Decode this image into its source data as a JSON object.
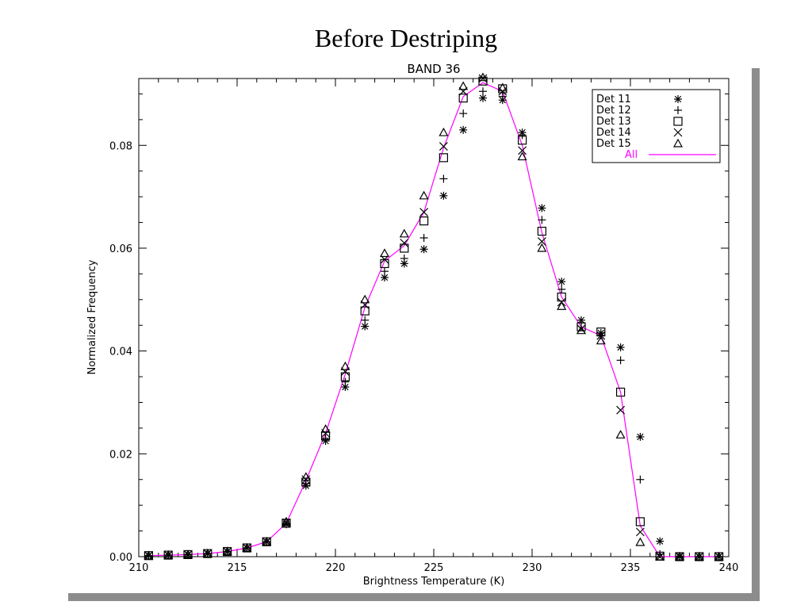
{
  "slide": {
    "title": "Before Destriping"
  },
  "chart_data": {
    "type": "scatter",
    "title": "BAND 36",
    "xlabel": "Brightness Temperature (K)",
    "ylabel": "Normalized Frequency",
    "xlim": [
      210,
      240
    ],
    "ylim": [
      0,
      0.093
    ],
    "xticks": [
      210,
      215,
      220,
      225,
      230,
      235,
      240
    ],
    "xtick_labels": [
      "210",
      "215",
      "220",
      "225",
      "230",
      "235",
      "240"
    ],
    "yticks": [
      0,
      0.02,
      0.04,
      0.06,
      0.08
    ],
    "ytick_labels": [
      "0.00",
      "0.02",
      "0.04",
      "0.06",
      "0.08"
    ],
    "x": [
      210.5,
      211.5,
      212.5,
      213.5,
      214.5,
      215.5,
      216.5,
      217.5,
      218.5,
      219.5,
      220.5,
      221.5,
      222.5,
      223.5,
      224.5,
      225.5,
      226.5,
      227.5,
      228.5,
      229.5,
      230.5,
      231.5,
      232.5,
      233.5,
      234.5,
      235.5,
      236.5,
      237.5,
      238.5,
      239.5
    ],
    "series": [
      {
        "name": "Det 11",
        "marker": "asterisk",
        "color": "#000000",
        "values": [
          0.0002,
          0.0003,
          0.0004,
          0.0006,
          0.001,
          0.0017,
          0.0029,
          0.0063,
          0.0138,
          0.0225,
          0.033,
          0.0448,
          0.0543,
          0.057,
          0.0598,
          0.0702,
          0.083,
          0.0892,
          0.0888,
          0.0825,
          0.0678,
          0.0535,
          0.046,
          0.0435,
          0.0407,
          0.0233,
          0.003,
          0.0001,
          0.0,
          0.0
        ]
      },
      {
        "name": "Det 12",
        "marker": "plus",
        "color": "#000000",
        "values": [
          0.0002,
          0.0003,
          0.0004,
          0.0006,
          0.001,
          0.0017,
          0.0029,
          0.0064,
          0.0142,
          0.023,
          0.034,
          0.046,
          0.0555,
          0.058,
          0.062,
          0.0735,
          0.0862,
          0.0905,
          0.0895,
          0.082,
          0.0655,
          0.052,
          0.0455,
          0.043,
          0.0382,
          0.015,
          0.0005,
          0.0,
          0.0,
          0.0
        ]
      },
      {
        "name": "Det 13",
        "marker": "square",
        "color": "#000000",
        "values": [
          0.0002,
          0.0003,
          0.0004,
          0.0006,
          0.001,
          0.0017,
          0.0029,
          0.0065,
          0.0145,
          0.0235,
          0.035,
          0.0478,
          0.057,
          0.06,
          0.0653,
          0.0776,
          0.0892,
          0.0925,
          0.091,
          0.081,
          0.0633,
          0.0505,
          0.0447,
          0.0437,
          0.032,
          0.0068,
          0.0001,
          0.0,
          0.0,
          0.0
        ]
      },
      {
        "name": "Det 14",
        "marker": "x",
        "color": "#000000",
        "values": [
          0.0002,
          0.0003,
          0.0004,
          0.0006,
          0.001,
          0.0017,
          0.0029,
          0.0066,
          0.015,
          0.024,
          0.036,
          0.049,
          0.0578,
          0.061,
          0.067,
          0.0798,
          0.0905,
          0.093,
          0.0905,
          0.079,
          0.0613,
          0.0495,
          0.0443,
          0.043,
          0.0285,
          0.0048,
          0.0,
          0.0,
          0.0,
          0.0
        ]
      },
      {
        "name": "Det 15",
        "marker": "triangle",
        "color": "#000000",
        "values": [
          0.0002,
          0.0003,
          0.0004,
          0.0006,
          0.001,
          0.0017,
          0.0029,
          0.0068,
          0.0155,
          0.0248,
          0.037,
          0.05,
          0.059,
          0.0628,
          0.0702,
          0.0825,
          0.0915,
          0.0932,
          0.0912,
          0.0778,
          0.06,
          0.0487,
          0.044,
          0.042,
          0.0237,
          0.0028,
          0.0,
          0.0,
          0.0,
          0.0
        ]
      },
      {
        "name": "All",
        "marker": "line",
        "color": "#ff00ff",
        "values": [
          0.0002,
          0.0003,
          0.0004,
          0.0006,
          0.001,
          0.0017,
          0.0029,
          0.0065,
          0.0148,
          0.024,
          0.0355,
          0.0485,
          0.0575,
          0.0605,
          0.067,
          0.0795,
          0.0895,
          0.0922,
          0.0905,
          0.08,
          0.063,
          0.0505,
          0.0447,
          0.043,
          0.032,
          0.006,
          0.0,
          0.0,
          0.0,
          0.0
        ]
      }
    ],
    "legend": {
      "position": "top-right"
    },
    "colors": {
      "all_line": "#ff00ff",
      "markers": "#000000",
      "frame_shadow": "#8c8c8c"
    }
  }
}
